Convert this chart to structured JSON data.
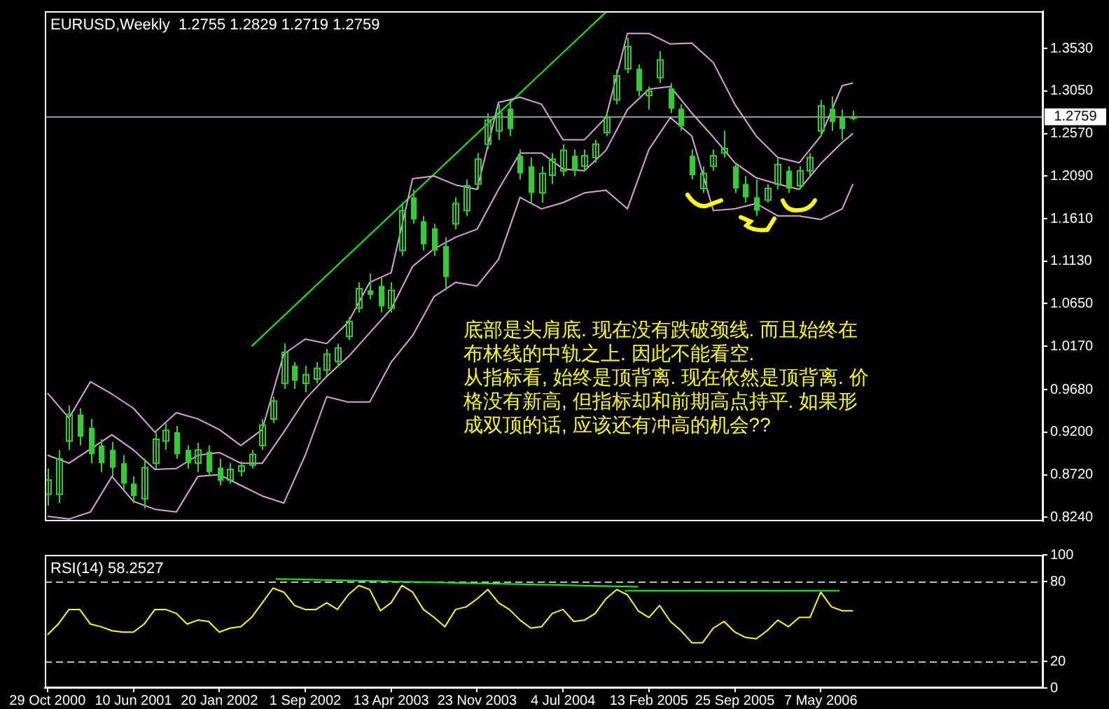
{
  "chart_data": [
    {
      "type": "candlestick",
      "title": "EURUSD,Weekly  1.2755 1.2829 1.2719 1.2759",
      "color": "#32cd32",
      "x": [
        "2000-10-29",
        "2000-11-26",
        "2000-12-24",
        "2001-01-21",
        "2001-02-18",
        "2001-03-18",
        "2001-04-15",
        "2001-05-13",
        "2001-06-10",
        "2001-07-08",
        "2001-08-05",
        "2001-09-02",
        "2001-09-30",
        "2001-10-28",
        "2001-11-25",
        "2001-12-23",
        "2002-01-20",
        "2002-02-17",
        "2002-03-17",
        "2002-04-14",
        "2002-05-12",
        "2002-06-09",
        "2002-07-07",
        "2002-08-04",
        "2002-09-01",
        "2002-09-29",
        "2002-10-27",
        "2002-11-24",
        "2002-12-22",
        "2003-01-19",
        "2003-02-16",
        "2003-03-16",
        "2003-04-13",
        "2003-05-11",
        "2003-06-08",
        "2003-07-06",
        "2003-08-03",
        "2003-08-31",
        "2003-09-28",
        "2003-10-26",
        "2003-11-23",
        "2003-12-21",
        "2004-01-18",
        "2004-02-15",
        "2004-03-14",
        "2004-04-11",
        "2004-05-09",
        "2004-06-06",
        "2004-07-04",
        "2004-08-01",
        "2004-08-29",
        "2004-09-26",
        "2004-10-24",
        "2004-11-21",
        "2004-12-19",
        "2005-01-16",
        "2005-02-13",
        "2005-03-13",
        "2005-04-10",
        "2005-05-08",
        "2005-06-05",
        "2005-07-03",
        "2005-07-31",
        "2005-08-28",
        "2005-09-25",
        "2005-10-23",
        "2005-11-20",
        "2005-12-18",
        "2006-01-15",
        "2006-02-12",
        "2006-03-12",
        "2006-04-09",
        "2006-05-07",
        "2006-06-04",
        "2006-07-02",
        "2006-07-30"
      ],
      "ohlc": [
        [
          0.85,
          0.879,
          0.837,
          0.866
        ],
        [
          0.85,
          0.9,
          0.84,
          0.89
        ],
        [
          0.91,
          0.95,
          0.9,
          0.94
        ],
        [
          0.94,
          0.947,
          0.905,
          0.915
        ],
        [
          0.925,
          0.935,
          0.885,
          0.895
        ],
        [
          0.905,
          0.912,
          0.875,
          0.885
        ],
        [
          0.9,
          0.909,
          0.87,
          0.88
        ],
        [
          0.885,
          0.894,
          0.855,
          0.862
        ],
        [
          0.862,
          0.87,
          0.84,
          0.848
        ],
        [
          0.845,
          0.89,
          0.834,
          0.88
        ],
        [
          0.885,
          0.92,
          0.879,
          0.912
        ],
        [
          0.91,
          0.93,
          0.9,
          0.922
        ],
        [
          0.92,
          0.927,
          0.89,
          0.895
        ],
        [
          0.9,
          0.905,
          0.879,
          0.885
        ],
        [
          0.885,
          0.908,
          0.875,
          0.9
        ],
        [
          0.898,
          0.905,
          0.87,
          0.875
        ],
        [
          0.88,
          0.89,
          0.86,
          0.865
        ],
        [
          0.866,
          0.885,
          0.862,
          0.878
        ],
        [
          0.876,
          0.887,
          0.87,
          0.882
        ],
        [
          0.883,
          0.9,
          0.879,
          0.895
        ],
        [
          0.905,
          0.935,
          0.9,
          0.928
        ],
        [
          0.935,
          0.96,
          0.93,
          0.955
        ],
        [
          0.975,
          1.02,
          0.969,
          1.01
        ],
        [
          0.995,
          0.999,
          0.969,
          0.978
        ],
        [
          0.975,
          0.995,
          0.965,
          0.985
        ],
        [
          0.98,
          0.999,
          0.975,
          0.992
        ],
        [
          0.99,
          1.014,
          0.984,
          1.008
        ],
        [
          1.0,
          1.02,
          0.995,
          1.015
        ],
        [
          1.028,
          1.05,
          1.024,
          1.045
        ],
        [
          1.06,
          1.089,
          1.055,
          1.082
        ],
        [
          1.08,
          1.099,
          1.07,
          1.075
        ],
        [
          1.085,
          1.095,
          1.055,
          1.062
        ],
        [
          1.06,
          1.089,
          1.055,
          1.08
        ],
        [
          1.125,
          1.179,
          1.119,
          1.17
        ],
        [
          1.185,
          1.194,
          1.155,
          1.16
        ],
        [
          1.158,
          1.164,
          1.125,
          1.132
        ],
        [
          1.15,
          1.155,
          1.119,
          1.125
        ],
        [
          1.13,
          1.14,
          1.08,
          1.095
        ],
        [
          1.155,
          1.185,
          1.149,
          1.178
        ],
        [
          1.17,
          1.205,
          1.164,
          1.198
        ],
        [
          1.2,
          1.235,
          1.194,
          1.228
        ],
        [
          1.245,
          1.28,
          1.239,
          1.272
        ],
        [
          1.26,
          1.29,
          1.25,
          1.28
        ],
        [
          1.285,
          1.295,
          1.254,
          1.262
        ],
        [
          1.232,
          1.239,
          1.205,
          1.212
        ],
        [
          1.22,
          1.23,
          1.179,
          1.19
        ],
        [
          1.19,
          1.22,
          1.179,
          1.212
        ],
        [
          1.21,
          1.235,
          1.2,
          1.228
        ],
        [
          1.215,
          1.245,
          1.209,
          1.238
        ],
        [
          1.232,
          1.239,
          1.209,
          1.215
        ],
        [
          1.22,
          1.239,
          1.215,
          1.232
        ],
        [
          1.23,
          1.25,
          1.224,
          1.245
        ],
        [
          1.258,
          1.28,
          1.254,
          1.275
        ],
        [
          1.295,
          1.329,
          1.29,
          1.322
        ],
        [
          1.33,
          1.365,
          1.325,
          1.355
        ],
        [
          1.33,
          1.335,
          1.299,
          1.305
        ],
        [
          1.3,
          1.31,
          1.284,
          1.305
        ],
        [
          1.32,
          1.35,
          1.314,
          1.34
        ],
        [
          1.308,
          1.314,
          1.28,
          1.285
        ],
        [
          1.285,
          1.29,
          1.26,
          1.265
        ],
        [
          1.232,
          1.239,
          1.205,
          1.21
        ],
        [
          1.195,
          1.22,
          1.19,
          1.212
        ],
        [
          1.22,
          1.239,
          1.215,
          1.232
        ],
        [
          1.235,
          1.26,
          1.23,
          1.24
        ],
        [
          1.22,
          1.224,
          1.19,
          1.195
        ],
        [
          1.2,
          1.209,
          1.179,
          1.185
        ],
        [
          1.185,
          1.205,
          1.164,
          1.17
        ],
        [
          1.182,
          1.2,
          1.179,
          1.195
        ],
        [
          1.2,
          1.23,
          1.194,
          1.222
        ],
        [
          1.215,
          1.22,
          1.19,
          1.195
        ],
        [
          1.198,
          1.22,
          1.194,
          1.215
        ],
        [
          1.215,
          1.235,
          1.209,
          1.23
        ],
        [
          1.26,
          1.295,
          1.254,
          1.288
        ],
        [
          1.285,
          1.299,
          1.26,
          1.27
        ],
        [
          1.275,
          1.284,
          1.25,
          1.262
        ],
        [
          1.2755,
          1.2829,
          1.2719,
          1.2759
        ]
      ],
      "series": [
        {
          "type": "line",
          "color": "#dda0dd",
          "x": [
            "2000-10-29",
            "2000-12-24",
            "2001-02-18",
            "2001-04-15",
            "2001-06-10",
            "2001-08-05",
            "2001-09-30",
            "2001-11-25",
            "2002-01-20",
            "2002-03-17",
            "2002-05-12",
            "2002-07-07",
            "2002-09-01",
            "2002-10-27",
            "2002-12-22",
            "2003-02-16",
            "2003-04-13",
            "2003-06-08",
            "2003-08-03",
            "2003-09-28",
            "2003-11-23",
            "2004-01-18",
            "2004-03-14",
            "2004-05-09",
            "2004-07-04",
            "2004-08-29",
            "2004-10-24",
            "2004-12-19",
            "2005-02-13",
            "2005-04-10",
            "2005-06-05",
            "2005-07-31",
            "2005-09-25",
            "2005-11-20",
            "2006-01-15",
            "2006-03-12",
            "2006-05-07",
            "2006-07-02",
            "2006-07-30"
          ],
          "values": [
            0.964,
            0.936,
            0.977,
            0.963,
            0.947,
            0.92,
            0.942,
            0.935,
            0.923,
            0.905,
            0.923,
            1.008,
            1.025,
            1.02,
            1.044,
            1.089,
            1.1,
            1.206,
            1.209,
            1.199,
            1.194,
            1.292,
            1.298,
            1.29,
            1.25,
            1.25,
            1.275,
            1.37,
            1.37,
            1.358,
            1.359,
            1.337,
            1.29,
            1.254,
            1.23,
            1.224,
            1.254,
            1.311,
            1.314
          ]
        },
        {
          "type": "line",
          "color": "#dda0dd",
          "x": [
            "2000-10-29",
            "2000-12-24",
            "2001-02-18",
            "2001-04-15",
            "2001-06-10",
            "2001-08-05",
            "2001-09-30",
            "2001-11-25",
            "2002-01-20",
            "2002-03-17",
            "2002-05-12",
            "2002-07-07",
            "2002-09-01",
            "2002-10-27",
            "2002-12-22",
            "2003-02-16",
            "2003-04-13",
            "2003-06-08",
            "2003-08-03",
            "2003-09-28",
            "2003-11-23",
            "2004-01-18",
            "2004-03-14",
            "2004-05-09",
            "2004-07-04",
            "2004-08-29",
            "2004-10-24",
            "2004-12-19",
            "2005-02-13",
            "2005-04-10",
            "2005-06-05",
            "2005-07-31",
            "2005-09-25",
            "2005-11-20",
            "2006-01-15",
            "2006-03-12",
            "2006-05-07",
            "2006-07-02",
            "2006-07-30"
          ],
          "values": [
            0.894,
            0.885,
            0.901,
            0.917,
            0.9,
            0.878,
            0.879,
            0.894,
            0.897,
            0.885,
            0.885,
            0.92,
            0.957,
            0.983,
            1.005,
            1.032,
            1.059,
            1.107,
            1.127,
            1.14,
            1.149,
            1.194,
            1.235,
            1.235,
            1.217,
            1.215,
            1.238,
            1.284,
            1.307,
            1.31,
            1.28,
            1.253,
            1.224,
            1.207,
            1.2,
            1.194,
            1.223,
            1.247,
            1.257
          ]
        },
        {
          "type": "line",
          "color": "#dda0dd",
          "x": [
            "2000-10-29",
            "2000-12-24",
            "2001-02-18",
            "2001-04-15",
            "2001-06-10",
            "2001-08-05",
            "2001-09-30",
            "2001-11-25",
            "2002-01-20",
            "2002-03-17",
            "2002-05-12",
            "2002-07-07",
            "2002-09-01",
            "2002-10-27",
            "2002-12-22",
            "2003-02-16",
            "2003-04-13",
            "2003-06-08",
            "2003-08-03",
            "2003-09-28",
            "2003-11-23",
            "2004-01-18",
            "2004-03-14",
            "2004-05-09",
            "2004-07-04",
            "2004-08-29",
            "2004-10-24",
            "2004-12-19",
            "2005-02-13",
            "2005-04-10",
            "2005-06-05",
            "2005-07-31",
            "2005-09-25",
            "2005-11-20",
            "2006-01-15",
            "2006-03-12",
            "2006-05-07",
            "2006-07-02",
            "2006-07-30"
          ],
          "values": [
            0.825,
            0.822,
            0.83,
            0.87,
            0.842,
            0.833,
            0.83,
            0.87,
            0.872,
            0.86,
            0.848,
            0.84,
            0.894,
            0.96,
            0.954,
            0.954,
            0.999,
            1.029,
            1.073,
            1.089,
            1.085,
            1.115,
            1.185,
            1.172,
            1.179,
            1.19,
            1.193,
            1.172,
            1.239,
            1.275,
            1.254,
            1.17,
            1.172,
            1.178,
            1.164,
            1.164,
            1.16,
            1.172,
            1.2
          ]
        },
        {
          "type": "line",
          "color": "#00ff00",
          "x": [
            "2002-04-14",
            "2004-10-24"
          ],
          "values": [
            1.017,
            1.394
          ]
        }
      ],
      "xlim": [
        "2000-10-22",
        "2007-12-08"
      ],
      "ylim": [
        0.8195,
        1.395
      ],
      "yticks": [
        {
          "value": 1.353,
          "label": "1.3530"
        },
        {
          "value": 1.305,
          "label": "1.3050"
        },
        {
          "value": 1.257,
          "label": "1.2570"
        },
        {
          "value": 1.209,
          "label": "1.2090"
        },
        {
          "value": 1.161,
          "label": "1.1610"
        },
        {
          "value": 1.113,
          "label": "1.1130"
        },
        {
          "value": 1.065,
          "label": "1.0650"
        },
        {
          "value": 1.017,
          "label": "1.0170"
        },
        {
          "value": 0.968,
          "label": "0.9680"
        },
        {
          "value": 0.92,
          "label": "0.9200"
        },
        {
          "value": 0.872,
          "label": "0.8720"
        },
        {
          "value": 0.824,
          "label": "0.8240"
        }
      ],
      "tick_labels": "y",
      "ref_lines": [
        {
          "axis": "y",
          "value": 1.2759,
          "label": "1.2759",
          "color": "#8c9aa8"
        }
      ],
      "annotations": [
        "底部是头肩底. 现在没有跌破颈线. 而且始终在",
        "布林线的中轨之上. 因此不能看空.",
        "从指标看, 始终是顶背离. 现在依然是顶背离. 价",
        "格没有新高, 但指标却和前期高点持平. 如果形",
        "成双顶的话, 应该还有冲高的机会??"
      ]
    },
    {
      "type": "line",
      "title": "RSI(14) 58.2527",
      "x": [
        "2000-10-29",
        "2000-11-26",
        "2000-12-24",
        "2001-01-21",
        "2001-02-18",
        "2001-03-18",
        "2001-04-15",
        "2001-05-13",
        "2001-06-10",
        "2001-07-08",
        "2001-08-05",
        "2001-09-02",
        "2001-09-30",
        "2001-10-28",
        "2001-11-25",
        "2001-12-23",
        "2002-01-20",
        "2002-02-17",
        "2002-03-17",
        "2002-04-14",
        "2002-05-12",
        "2002-06-09",
        "2002-07-07",
        "2002-08-04",
        "2002-09-01",
        "2002-09-29",
        "2002-10-27",
        "2002-11-24",
        "2002-12-22",
        "2003-01-19",
        "2003-02-16",
        "2003-03-16",
        "2003-04-13",
        "2003-05-11",
        "2003-06-08",
        "2003-07-06",
        "2003-08-03",
        "2003-08-31",
        "2003-09-28",
        "2003-10-26",
        "2003-11-23",
        "2003-12-21",
        "2004-01-18",
        "2004-02-15",
        "2004-03-14",
        "2004-04-11",
        "2004-05-09",
        "2004-06-06",
        "2004-07-04",
        "2004-08-01",
        "2004-08-29",
        "2004-09-26",
        "2004-10-24",
        "2004-11-21",
        "2004-12-19",
        "2005-01-16",
        "2005-02-13",
        "2005-03-13",
        "2005-04-10",
        "2005-05-08",
        "2005-06-05",
        "2005-07-03",
        "2005-07-31",
        "2005-08-28",
        "2005-09-25",
        "2005-10-23",
        "2005-11-20",
        "2005-12-18",
        "2006-01-15",
        "2006-02-12",
        "2006-03-12",
        "2006-04-09",
        "2006-05-07",
        "2006-06-04",
        "2006-07-02",
        "2006-07-30"
      ],
      "series": [
        {
          "color": "#ffff00",
          "values": [
            40,
            48,
            59,
            59,
            48,
            46,
            43,
            42,
            42,
            48,
            59,
            59,
            56,
            48,
            51,
            50,
            42,
            45,
            46,
            53,
            64,
            75,
            72,
            62,
            59,
            59,
            64,
            59,
            70,
            77,
            74,
            58,
            64,
            77,
            72,
            59,
            53,
            46,
            59,
            61,
            67,
            74,
            64,
            59,
            51,
            45,
            46,
            56,
            59,
            50,
            51,
            56,
            67,
            74,
            70,
            58,
            53,
            62,
            50,
            43,
            34,
            34,
            45,
            50,
            42,
            38,
            37,
            43,
            51,
            46,
            53,
            53,
            72,
            61,
            58,
            58
          ]
        },
        {
          "type": "line",
          "color": "#00ff00",
          "x": [
            "2002-06-16",
            "2005-01-16"
          ],
          "values": [
            82,
            76
          ]
        },
        {
          "type": "line",
          "color": "#00ff00",
          "x": [
            "2004-12-12",
            "2006-06-25"
          ],
          "values": [
            73,
            73
          ]
        }
      ],
      "xlim": [
        "2000-10-22",
        "2007-12-08"
      ],
      "xticks": [
        {
          "value": "2000-10-29",
          "label": "29 Oct 2000"
        },
        {
          "value": "2001-06-10",
          "label": "10 Jun 2001"
        },
        {
          "value": "2002-01-20",
          "label": "20 Jan 2002"
        },
        {
          "value": "2002-09-01",
          "label": "1 Sep 2002"
        },
        {
          "value": "2003-04-13",
          "label": "13 Apr 2003"
        },
        {
          "value": "2003-11-23",
          "label": "23 Nov 2003"
        },
        {
          "value": "2004-07-04",
          "label": "4 Jul 2004"
        },
        {
          "value": "2005-02-13",
          "label": "13 Feb 2005"
        },
        {
          "value": "2005-09-25",
          "label": "25 Sep 2005"
        },
        {
          "value": "2006-05-07",
          "label": "7 May 2006"
        }
      ],
      "ylim": [
        0,
        100
      ],
      "yticks": [
        100,
        80,
        20,
        0
      ],
      "ref_lines": [
        {
          "axis": "y",
          "value": 80,
          "color": "#c0c0c0",
          "line_style": "dashed"
        },
        {
          "axis": "y",
          "value": 20,
          "color": "#c0c0c0",
          "line_style": "dashed"
        }
      ]
    }
  ]
}
